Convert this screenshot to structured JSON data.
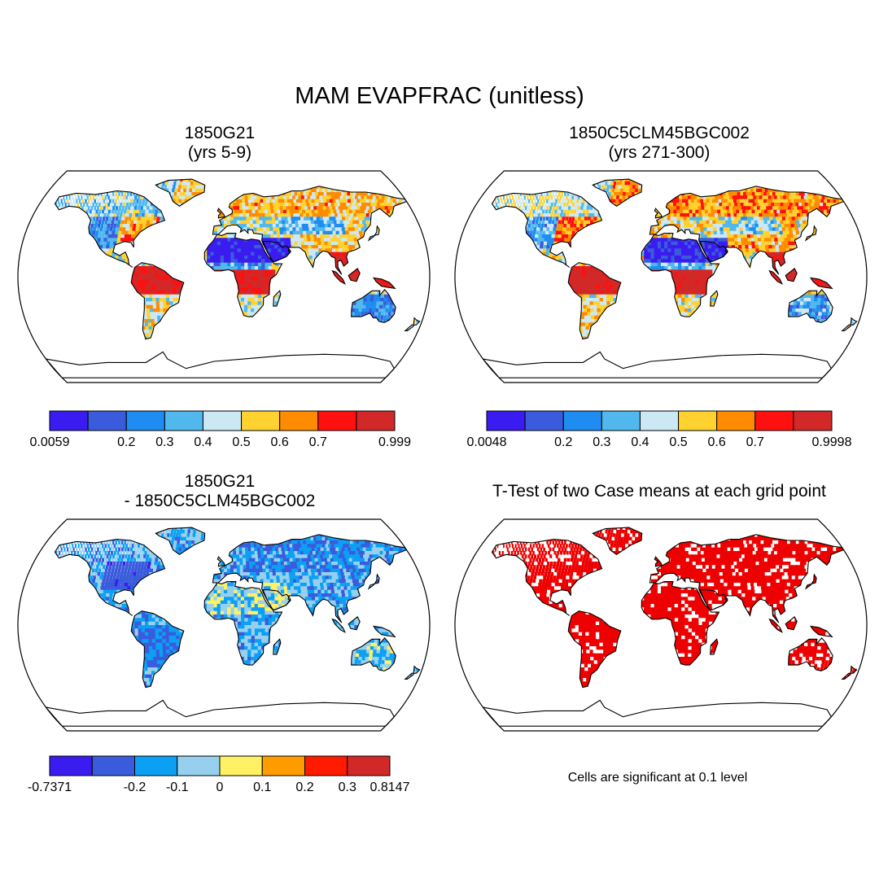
{
  "title": "MAM EVAPFRAC (unitless)",
  "panels": [
    {
      "id": "p1",
      "title_line1": "1850G21",
      "title_line2": "(yrs 5-9)"
    },
    {
      "id": "p2",
      "title_line1": "1850C5CLM45BGC002",
      "title_line2": "(yrs 271-300)"
    },
    {
      "id": "p3",
      "title_line1": "1850G21",
      "title_line2": "- 1850C5CLM45BGC002"
    },
    {
      "id": "p4",
      "title_line1": "T-Test of two Case means at each grid point",
      "title_line2": ""
    }
  ],
  "colorbars": [
    {
      "colors": [
        "#3a1cf0",
        "#3a5cdc",
        "#1e8cf0",
        "#50b8ec",
        "#cce8f4",
        "#ffd230",
        "#ff8c00",
        "#ff1010",
        "#d22828"
      ],
      "labels": [
        "0.0059",
        "0.2",
        "0.3",
        "0.4",
        "0.5",
        "0.6",
        "0.7",
        "0.999"
      ]
    },
    {
      "colors": [
        "#3a1cf0",
        "#3a5cdc",
        "#1e8cf0",
        "#50b8ec",
        "#cce8f4",
        "#ffd230",
        "#ff8c00",
        "#ff1010",
        "#d22828"
      ],
      "labels": [
        "0.0048",
        "0.2",
        "0.3",
        "0.4",
        "0.5",
        "0.6",
        "0.7",
        "0.9998"
      ]
    },
    {
      "colors": [
        "#3a1cf0",
        "#3a5cdc",
        "#0ca0f4",
        "#96d0ee",
        "#fff064",
        "#ff9c00",
        "#ff1a00",
        "#d22828"
      ],
      "labels": [
        "-0.7371",
        "-0.2",
        "-0.1",
        "0",
        "0.1",
        "0.2",
        "0.3",
        "0.8147"
      ]
    }
  ],
  "significance_note": "Cells are significant at 0.1 level",
  "significance_color": "#ee0000"
}
